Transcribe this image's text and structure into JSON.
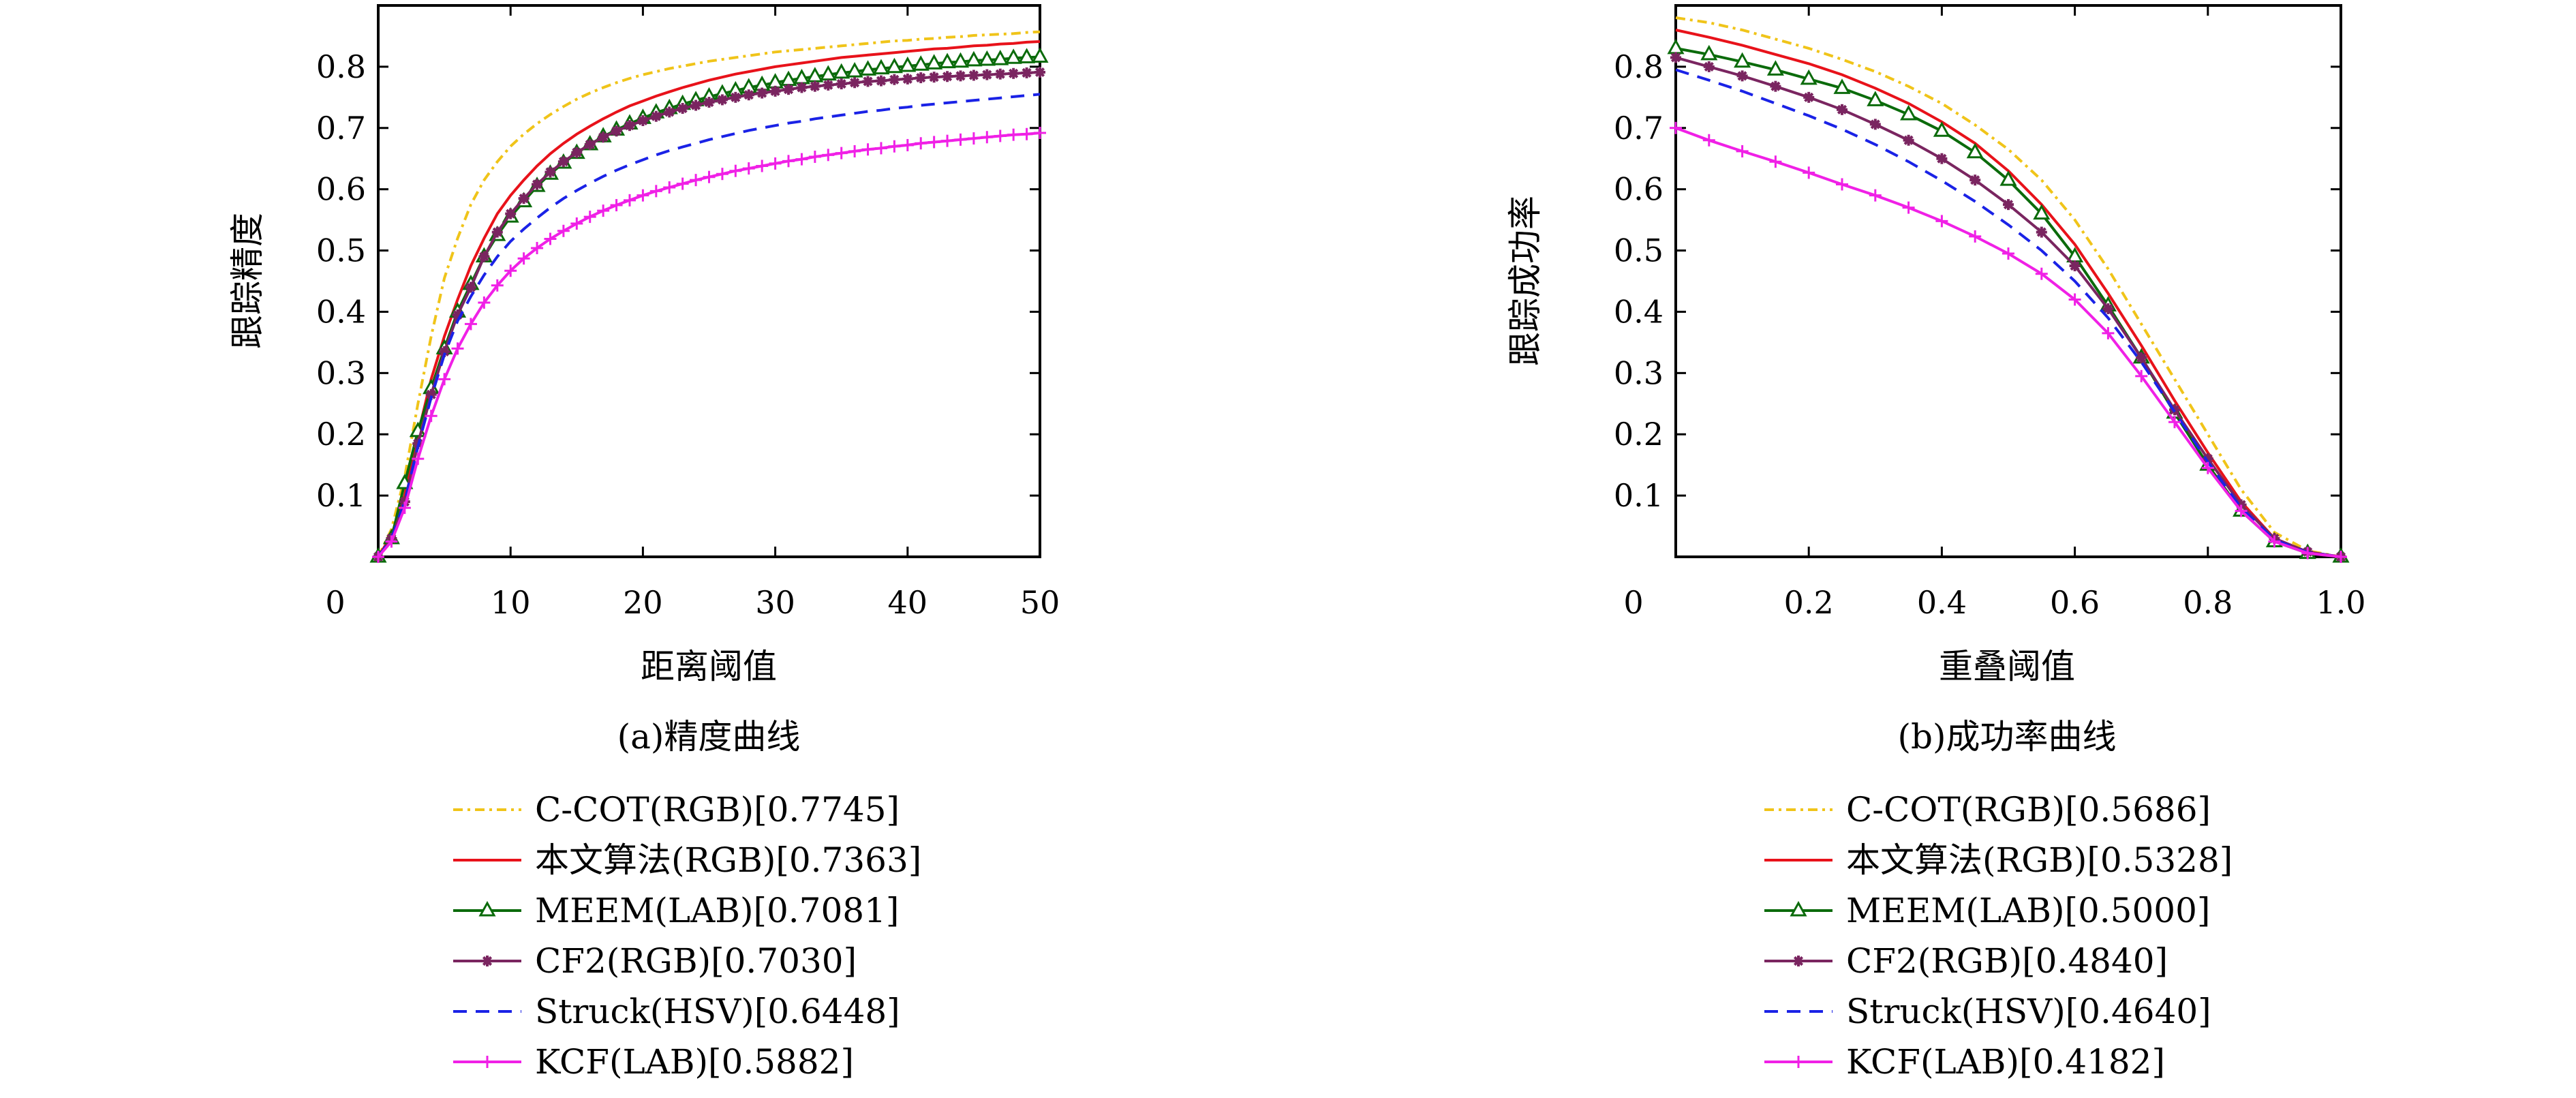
{
  "figure": {
    "colors": {
      "ccot": "#f0c419",
      "ours": "#e8121a",
      "meem": "#0b6b0b",
      "cf2": "#7a2560",
      "struck": "#1a22e6",
      "kcf": "#f020e6"
    }
  },
  "chart_data": [
    {
      "type": "line",
      "title": "",
      "caption": "(a)精度曲线",
      "xlabel": "距离阈值",
      "ylabel": "跟踪精度",
      "xlim": [
        0,
        50
      ],
      "ylim": [
        0,
        0.9
      ],
      "x_origin_label": "0",
      "xticks": [
        10,
        20,
        30,
        40,
        50
      ],
      "yticks": [
        0.1,
        0.2,
        0.3,
        0.4,
        0.5,
        0.6,
        0.7,
        0.8
      ],
      "grid": false,
      "legend_position": "below",
      "x": [
        0,
        1,
        2,
        3,
        4,
        5,
        6,
        7,
        8,
        9,
        10,
        11,
        12,
        13,
        14,
        15,
        16,
        17,
        18,
        19,
        20,
        21,
        22,
        23,
        24,
        25,
        26,
        27,
        28,
        29,
        30,
        31,
        32,
        33,
        34,
        35,
        36,
        37,
        38,
        39,
        40,
        41,
        42,
        43,
        44,
        45,
        46,
        47,
        48,
        49,
        50
      ],
      "series": [
        {
          "name": "C-COT(RGB)[0.7745]",
          "key": "ccot",
          "style": "dashdot",
          "marker": "none",
          "values": [
            0.0,
            0.045,
            0.13,
            0.25,
            0.36,
            0.455,
            0.52,
            0.575,
            0.615,
            0.645,
            0.67,
            0.69,
            0.707,
            0.722,
            0.735,
            0.747,
            0.757,
            0.766,
            0.774,
            0.781,
            0.787,
            0.792,
            0.797,
            0.801,
            0.805,
            0.809,
            0.812,
            0.815,
            0.818,
            0.821,
            0.824,
            0.826,
            0.828,
            0.83,
            0.832,
            0.834,
            0.836,
            0.838,
            0.84,
            0.842,
            0.843,
            0.845,
            0.846,
            0.848,
            0.849,
            0.851,
            0.852,
            0.853,
            0.854,
            0.856,
            0.857
          ]
        },
        {
          "name": "本文算法(RGB)[0.7363]",
          "key": "ours",
          "style": "solid",
          "marker": "none",
          "values": [
            0.0,
            0.035,
            0.1,
            0.2,
            0.29,
            0.36,
            0.42,
            0.475,
            0.52,
            0.56,
            0.59,
            0.615,
            0.638,
            0.658,
            0.675,
            0.69,
            0.703,
            0.715,
            0.726,
            0.736,
            0.744,
            0.752,
            0.759,
            0.766,
            0.772,
            0.778,
            0.783,
            0.788,
            0.792,
            0.796,
            0.8,
            0.803,
            0.806,
            0.809,
            0.812,
            0.815,
            0.817,
            0.819,
            0.821,
            0.823,
            0.825,
            0.827,
            0.829,
            0.83,
            0.832,
            0.834,
            0.835,
            0.837,
            0.838,
            0.84,
            0.841
          ]
        },
        {
          "name": "MEEM(LAB)[0.7081]",
          "key": "meem",
          "style": "solid",
          "marker": "triangle",
          "values": [
            0.0,
            0.03,
            0.12,
            0.205,
            0.275,
            0.34,
            0.4,
            0.445,
            0.49,
            0.525,
            0.555,
            0.58,
            0.605,
            0.625,
            0.643,
            0.659,
            0.673,
            0.686,
            0.697,
            0.707,
            0.716,
            0.725,
            0.732,
            0.739,
            0.745,
            0.751,
            0.756,
            0.761,
            0.766,
            0.77,
            0.774,
            0.778,
            0.781,
            0.784,
            0.787,
            0.79,
            0.792,
            0.795,
            0.797,
            0.799,
            0.801,
            0.803,
            0.805,
            0.807,
            0.808,
            0.81,
            0.811,
            0.812,
            0.814,
            0.815,
            0.816
          ]
        },
        {
          "name": "CF2(RGB)[0.7030]",
          "key": "cf2",
          "style": "solid",
          "marker": "star",
          "values": [
            0.0,
            0.03,
            0.09,
            0.185,
            0.265,
            0.335,
            0.395,
            0.44,
            0.49,
            0.53,
            0.56,
            0.585,
            0.608,
            0.628,
            0.645,
            0.66,
            0.673,
            0.685,
            0.695,
            0.704,
            0.712,
            0.719,
            0.726,
            0.732,
            0.737,
            0.742,
            0.746,
            0.75,
            0.754,
            0.757,
            0.76,
            0.763,
            0.766,
            0.768,
            0.77,
            0.772,
            0.774,
            0.776,
            0.777,
            0.779,
            0.78,
            0.782,
            0.783,
            0.784,
            0.785,
            0.786,
            0.787,
            0.788,
            0.789,
            0.79,
            0.791
          ]
        },
        {
          "name": "Struck(HSV)[0.6448]",
          "key": "struck",
          "style": "dashed",
          "marker": "none",
          "values": [
            0.0,
            0.03,
            0.09,
            0.18,
            0.26,
            0.33,
            0.385,
            0.425,
            0.46,
            0.49,
            0.515,
            0.535,
            0.553,
            0.57,
            0.585,
            0.598,
            0.61,
            0.621,
            0.631,
            0.64,
            0.648,
            0.656,
            0.663,
            0.669,
            0.675,
            0.681,
            0.686,
            0.691,
            0.696,
            0.7,
            0.704,
            0.708,
            0.711,
            0.715,
            0.718,
            0.721,
            0.724,
            0.727,
            0.729,
            0.732,
            0.734,
            0.737,
            0.739,
            0.741,
            0.743,
            0.745,
            0.747,
            0.749,
            0.751,
            0.753,
            0.755
          ]
        },
        {
          "name": "KCF(LAB)[0.5882]",
          "key": "kcf",
          "style": "solid",
          "marker": "plus",
          "values": [
            0.0,
            0.025,
            0.08,
            0.16,
            0.23,
            0.29,
            0.34,
            0.38,
            0.415,
            0.443,
            0.467,
            0.487,
            0.504,
            0.519,
            0.532,
            0.544,
            0.555,
            0.565,
            0.574,
            0.582,
            0.59,
            0.597,
            0.603,
            0.609,
            0.615,
            0.62,
            0.625,
            0.63,
            0.634,
            0.638,
            0.642,
            0.646,
            0.649,
            0.653,
            0.656,
            0.659,
            0.662,
            0.665,
            0.667,
            0.67,
            0.672,
            0.675,
            0.677,
            0.679,
            0.681,
            0.683,
            0.685,
            0.687,
            0.689,
            0.69,
            0.692
          ]
        }
      ]
    },
    {
      "type": "line",
      "title": "",
      "caption": "(b)成功率曲线",
      "xlabel": "重叠阈值",
      "ylabel": "跟踪成功率",
      "xlim": [
        0,
        1
      ],
      "ylim": [
        0,
        0.9
      ],
      "x_origin_label": "0",
      "xticks": [
        0.2,
        0.4,
        0.6,
        0.8,
        1.0
      ],
      "xtick_labels": [
        "0.2",
        "0.4",
        "0.6",
        "0.8",
        "1.0"
      ],
      "yticks": [
        0.1,
        0.2,
        0.3,
        0.4,
        0.5,
        0.6,
        0.7,
        0.8
      ],
      "grid": false,
      "legend_position": "below",
      "x": [
        0,
        0.05,
        0.1,
        0.15,
        0.2,
        0.25,
        0.3,
        0.35,
        0.4,
        0.45,
        0.5,
        0.55,
        0.6,
        0.65,
        0.7,
        0.75,
        0.8,
        0.85,
        0.9,
        0.95,
        1.0
      ],
      "series": [
        {
          "name": "C-COT(RGB)[0.5686]",
          "key": "ccot",
          "style": "dashdot",
          "marker": "none",
          "values": [
            0.88,
            0.872,
            0.86,
            0.845,
            0.83,
            0.812,
            0.792,
            0.768,
            0.74,
            0.705,
            0.665,
            0.615,
            0.55,
            0.47,
            0.38,
            0.29,
            0.2,
            0.11,
            0.04,
            0.01,
            0.0
          ]
        },
        {
          "name": "本文算法(RGB)[0.5328]",
          "key": "ours",
          "style": "solid",
          "marker": "none",
          "values": [
            0.86,
            0.848,
            0.835,
            0.82,
            0.805,
            0.787,
            0.765,
            0.74,
            0.71,
            0.675,
            0.63,
            0.575,
            0.51,
            0.43,
            0.345,
            0.255,
            0.17,
            0.09,
            0.03,
            0.008,
            0.0
          ]
        },
        {
          "name": "MEEM(LAB)[0.5000]",
          "key": "meem",
          "style": "solid",
          "marker": "triangle",
          "values": [
            0.83,
            0.82,
            0.808,
            0.795,
            0.78,
            0.765,
            0.745,
            0.722,
            0.695,
            0.66,
            0.615,
            0.56,
            0.49,
            0.41,
            0.325,
            0.235,
            0.15,
            0.075,
            0.025,
            0.006,
            0.0
          ]
        },
        {
          "name": "CF2(RGB)[0.4840]",
          "key": "cf2",
          "style": "solid",
          "marker": "star",
          "values": [
            0.815,
            0.8,
            0.785,
            0.768,
            0.75,
            0.73,
            0.706,
            0.68,
            0.65,
            0.615,
            0.575,
            0.53,
            0.475,
            0.405,
            0.325,
            0.24,
            0.16,
            0.085,
            0.03,
            0.008,
            0.0
          ]
        },
        {
          "name": "Struck(HSV)[0.4640]",
          "key": "struck",
          "style": "dashed",
          "marker": "none",
          "values": [
            0.795,
            0.778,
            0.76,
            0.74,
            0.72,
            0.698,
            0.673,
            0.645,
            0.614,
            0.58,
            0.542,
            0.5,
            0.45,
            0.39,
            0.318,
            0.237,
            0.155,
            0.08,
            0.028,
            0.007,
            0.0
          ]
        },
        {
          "name": "KCF(LAB)[0.4182]",
          "key": "kcf",
          "style": "solid",
          "marker": "plus",
          "values": [
            0.7,
            0.68,
            0.662,
            0.645,
            0.627,
            0.608,
            0.59,
            0.57,
            0.548,
            0.523,
            0.495,
            0.462,
            0.42,
            0.365,
            0.295,
            0.22,
            0.145,
            0.075,
            0.025,
            0.006,
            0.0
          ]
        }
      ]
    }
  ]
}
